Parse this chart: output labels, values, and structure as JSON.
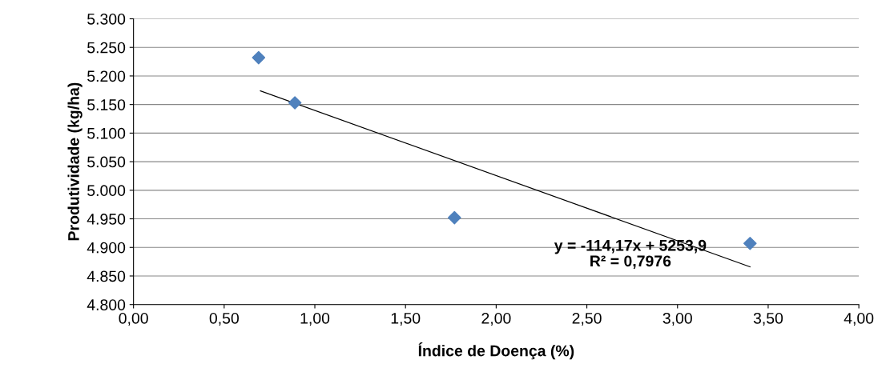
{
  "chart_data": {
    "type": "scatter",
    "xlabel": "Índice de Doença (%)",
    "ylabel": "Produtividade (kg/ha)",
    "series": [
      {
        "color": "#4f81bd",
        "marker": "diamond",
        "x": [
          0.69,
          0.89,
          1.77,
          3.4
        ],
        "values": [
          5232,
          5153,
          4952,
          4907
        ]
      },
      {
        "type": "line",
        "color": "#000000",
        "marker": "none",
        "line_style": "solid",
        "x": [
          0.7,
          3.4
        ],
        "values": [
          5174,
          4866
        ]
      }
    ],
    "xlim": [
      0,
      4
    ],
    "xticks": [
      {
        "value": 0,
        "label": "0,00"
      },
      {
        "value": 0.5,
        "label": "0,50"
      },
      {
        "value": 1,
        "label": "1,00"
      },
      {
        "value": 1.5,
        "label": "1,50"
      },
      {
        "value": 2,
        "label": "2,00"
      },
      {
        "value": 2.5,
        "label": "2,50"
      },
      {
        "value": 3,
        "label": "3,00"
      },
      {
        "value": 3.5,
        "label": "3,50"
      },
      {
        "value": 4,
        "label": "4,00"
      }
    ],
    "ylim": [
      4800,
      5300
    ],
    "yticks": [
      {
        "value": 4800,
        "label": "4.800"
      },
      {
        "value": 4850,
        "label": "4.850"
      },
      {
        "value": 4900,
        "label": "4.900"
      },
      {
        "value": 4950,
        "label": "4.950"
      },
      {
        "value": 5000,
        "label": "5.000"
      },
      {
        "value": 5050,
        "label": "5.050"
      },
      {
        "value": 5100,
        "label": "5.100"
      },
      {
        "value": 5150,
        "label": "5.150"
      },
      {
        "value": 5200,
        "label": "5.200"
      },
      {
        "value": 5250,
        "label": "5.250"
      },
      {
        "value": 5300,
        "label": "5.300"
      }
    ],
    "grid": "y",
    "annotations": [
      "y = -114,17x + 5253,9\nR² = 0,7976"
    ]
  }
}
